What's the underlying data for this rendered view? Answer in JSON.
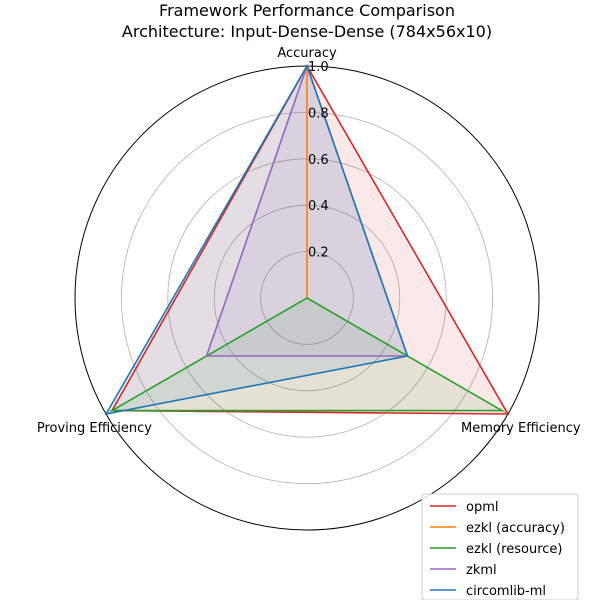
{
  "chart_data": {
    "type": "radar",
    "title_lines": [
      "Framework Performance Comparison",
      "Architecture: Input-Dense-Dense (784x56x10)"
    ],
    "axes": [
      "Accuracy",
      "Memory Efficiency",
      "Proving Efficiency"
    ],
    "rlim": [
      0,
      1.0
    ],
    "rticks": [
      0.2,
      0.4,
      0.6,
      0.8,
      1.0
    ],
    "rtick_labels": [
      "0.2",
      "0.4",
      "0.6",
      "0.8",
      "1.0"
    ],
    "grid": true,
    "legend_position": "lower-right",
    "series": [
      {
        "name": "opml",
        "color": "#d62728",
        "values": [
          1.0,
          1.0,
          0.97
        ]
      },
      {
        "name": "ezkl (accuracy)",
        "color": "#ff7f0e",
        "values": [
          1.0,
          0.0,
          0.0
        ]
      },
      {
        "name": "ezkl (resource)",
        "color": "#2ca02c",
        "values": [
          0.0,
          0.97,
          0.97
        ]
      },
      {
        "name": "zkml",
        "color": "#9467bd",
        "values": [
          1.0,
          0.5,
          0.5
        ]
      },
      {
        "name": "circomlib-ml",
        "color": "#1f77b4",
        "values": [
          1.0,
          0.5,
          1.0
        ]
      }
    ]
  }
}
